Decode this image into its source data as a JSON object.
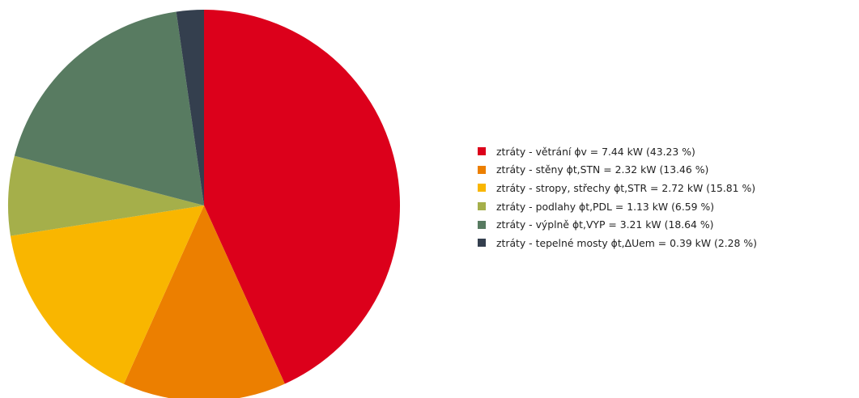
{
  "chart_data": {
    "type": "pie",
    "title": "",
    "start_angle_deg": 0,
    "direction": "clockwise",
    "legend_position": "right",
    "slices": [
      {
        "label": "ztráty - větrání ϕv = 7.44 kW (43.23 %)",
        "value": 7.44,
        "percent": 43.23,
        "color": "#dc001b"
      },
      {
        "label": "ztráty - stěny ϕt,STN = 2.32 kW (13.46 %)",
        "value": 2.32,
        "percent": 13.46,
        "color": "#ec7f00"
      },
      {
        "label": "ztráty - stropy, střechy ϕt,STR = 2.72 kW (15.81 %)",
        "value": 2.72,
        "percent": 15.81,
        "color": "#f9b600"
      },
      {
        "label": "ztráty - podlahy ϕt,PDL = 1.13 kW (6.59 %)",
        "value": 1.13,
        "percent": 6.59,
        "color": "#a5af4a"
      },
      {
        "label": "ztráty - výplně ϕt,VYP = 3.21 kW (18.64 %)",
        "value": 3.21,
        "percent": 18.64,
        "color": "#587b61"
      },
      {
        "label": "ztráty - tepelné mosty ϕt,ΔUem = 0.39 kW (2.28 %)",
        "value": 0.39,
        "percent": 2.28,
        "color": "#343f4e"
      }
    ]
  }
}
